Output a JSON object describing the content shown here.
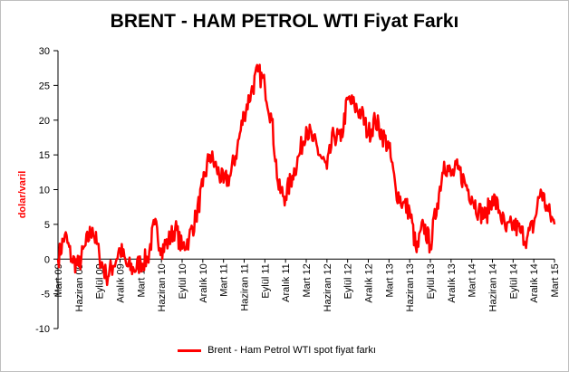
{
  "colors": {
    "series": "#ff0000",
    "ylabel": "#ff0000",
    "axis": "#000000"
  },
  "chart_data": {
    "type": "line",
    "title": "BRENT - HAM PETROL WTI Fiyat Farkı",
    "ylabel": "dolar/varil",
    "xlabel": "",
    "ylim": [
      -10,
      30
    ],
    "yticks": [
      -10,
      -5,
      0,
      5,
      10,
      15,
      20,
      25,
      30
    ],
    "grid": false,
    "legend_position": "bottom",
    "x_tick_labels": [
      "Mart 09",
      "Haziran 09",
      "Eylül 09",
      "Aralık 09",
      "Mart 10",
      "Haziran 10",
      "Eylül 10",
      "Aralık 10",
      "Mart 11",
      "Haziran 11",
      "Eylül 11",
      "Aralık 11",
      "Mart 12",
      "Haziran 12",
      "Eylül 12",
      "Aralık 12",
      "Mart 13",
      "Haziran 13",
      "Eylül 13",
      "Aralık 13",
      "Mart 14",
      "Haziran 14",
      "Eylül 14",
      "Aralık 14",
      "Mart 15"
    ],
    "series": [
      {
        "name": "Brent - Ham Petrol WTI spot fiyat farkı",
        "x": [
          "2009-03",
          "2009-04",
          "2009-05",
          "2009-06",
          "2009-07",
          "2009-08",
          "2009-09",
          "2009-10",
          "2009-11",
          "2009-12",
          "2010-01",
          "2010-02",
          "2010-03",
          "2010-04",
          "2010-05",
          "2010-06",
          "2010-07",
          "2010-08",
          "2010-09",
          "2010-10",
          "2010-11",
          "2010-12",
          "2011-01",
          "2011-02",
          "2011-03",
          "2011-04",
          "2011-05",
          "2011-06",
          "2011-07",
          "2011-08",
          "2011-09",
          "2011-10",
          "2011-11",
          "2011-12",
          "2012-01",
          "2012-02",
          "2012-03",
          "2012-04",
          "2012-05",
          "2012-06",
          "2012-07",
          "2012-08",
          "2012-09",
          "2012-10",
          "2012-11",
          "2012-12",
          "2013-01",
          "2013-02",
          "2013-03",
          "2013-04",
          "2013-05",
          "2013-06",
          "2013-07",
          "2013-08",
          "2013-09",
          "2013-10",
          "2013-11",
          "2013-12",
          "2014-01",
          "2014-02",
          "2014-03",
          "2014-04",
          "2014-05",
          "2014-06",
          "2014-07",
          "2014-08",
          "2014-09",
          "2014-10",
          "2014-11",
          "2014-12",
          "2015-01",
          "2015-02",
          "2015-03"
        ],
        "values": [
          0,
          3.5,
          0,
          -1,
          2,
          4.5,
          0.5,
          -2.5,
          -1,
          1.5,
          -1,
          -1.5,
          -0.5,
          0,
          5,
          1.5,
          2.5,
          4.5,
          1.5,
          3,
          6,
          10.5,
          15,
          13,
          11,
          12,
          16,
          21,
          24,
          27,
          25,
          20,
          10,
          9,
          12,
          15,
          19,
          17,
          15,
          13,
          18,
          17,
          23,
          22,
          21,
          18,
          20,
          18,
          16,
          10,
          8,
          7,
          1,
          5,
          2,
          8,
          14,
          12,
          13,
          11,
          9,
          7,
          6,
          9,
          7,
          4,
          5,
          4,
          3,
          5,
          10,
          7,
          5
        ]
      }
    ]
  }
}
